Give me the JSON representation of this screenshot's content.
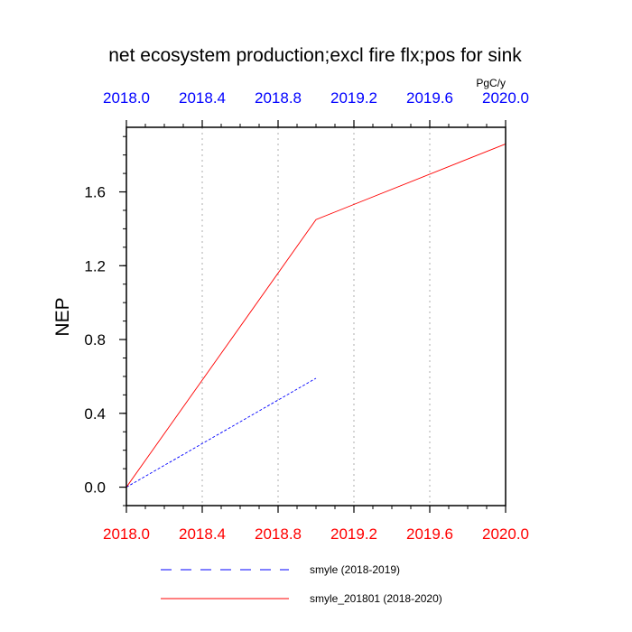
{
  "chart_data": {
    "type": "line",
    "title": "net ecosystem production;excl fire flx;pos for sink",
    "units": "PgC/y",
    "ylabel": "NEP",
    "xlabel": "",
    "xlim": [
      2018.0,
      2020.0
    ],
    "ylim": [
      -0.1,
      1.95
    ],
    "x_ticks": [
      "2018.0",
      "2018.4",
      "2018.8",
      "2019.2",
      "2019.6",
      "2020.0"
    ],
    "y_ticks": [
      "0.0",
      "0.4",
      "0.8",
      "1.2",
      "1.6"
    ],
    "grid": "vertical-dotted",
    "legend_position": "bottom",
    "series": [
      {
        "name": "smyle (2018-2019)",
        "color": "#0000ff",
        "dash": "dashed",
        "x": [
          2018.0,
          2019.0
        ],
        "y": [
          0.0,
          0.59
        ]
      },
      {
        "name": "smyle_201801 (2018-2020)",
        "color": "#ff0000",
        "dash": "solid",
        "x": [
          2018.0,
          2019.0,
          2020.0
        ],
        "y": [
          0.0,
          1.45,
          1.86
        ]
      }
    ],
    "colors": {
      "top_axis_labels": "#0000ff",
      "bottom_axis_labels": "#ff0000",
      "grid": "#bbbbbb"
    }
  }
}
